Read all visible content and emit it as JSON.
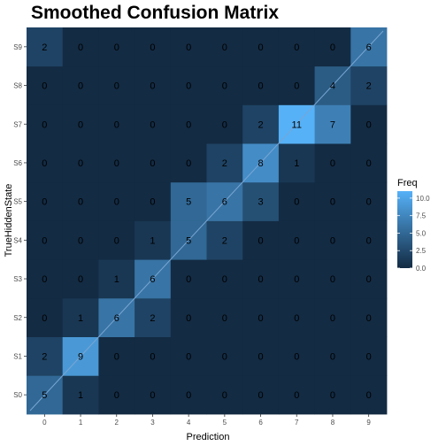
{
  "chart_data": {
    "type": "heatmap",
    "title": "Smoothed Confusion Matrix",
    "xlabel": "Prediction",
    "ylabel": "TrueHiddenState",
    "x_categories": [
      "0",
      "1",
      "2",
      "3",
      "4",
      "5",
      "6",
      "7",
      "8",
      "9"
    ],
    "y_categories": [
      "S0",
      "S1",
      "S2",
      "S3",
      "S4",
      "S5",
      "S6",
      "S7",
      "S8",
      "S9"
    ],
    "values": [
      [
        5,
        1,
        0,
        0,
        0,
        0,
        0,
        0,
        0,
        0
      ],
      [
        2,
        9,
        0,
        0,
        0,
        0,
        0,
        0,
        0,
        0
      ],
      [
        0,
        1,
        6,
        2,
        0,
        0,
        0,
        0,
        0,
        0
      ],
      [
        0,
        0,
        1,
        6,
        0,
        0,
        0,
        0,
        0,
        0
      ],
      [
        0,
        0,
        0,
        1,
        5,
        2,
        0,
        0,
        0,
        0
      ],
      [
        0,
        0,
        0,
        0,
        5,
        6,
        3,
        0,
        0,
        0
      ],
      [
        0,
        0,
        0,
        0,
        0,
        2,
        8,
        1,
        0,
        0
      ],
      [
        0,
        0,
        0,
        0,
        0,
        0,
        2,
        11,
        7,
        0
      ],
      [
        0,
        0,
        0,
        0,
        0,
        0,
        0,
        0,
        4,
        2
      ],
      [
        2,
        0,
        0,
        0,
        0,
        0,
        0,
        0,
        0,
        6
      ]
    ],
    "diagonal_reference_line": true,
    "grid": false,
    "legend": {
      "title": "Freq",
      "position": "right",
      "ticks": [
        "0.0",
        "2.5",
        "5.0",
        "7.5",
        "10.0"
      ],
      "tick_values": [
        0,
        2.5,
        5,
        7.5,
        10
      ],
      "range": [
        0,
        11
      ]
    },
    "colors": {
      "low": "#132B43",
      "high": "#56B1F7",
      "panel_background": "#EBEBEB",
      "diagonal_line": "#79A6D4"
    }
  }
}
